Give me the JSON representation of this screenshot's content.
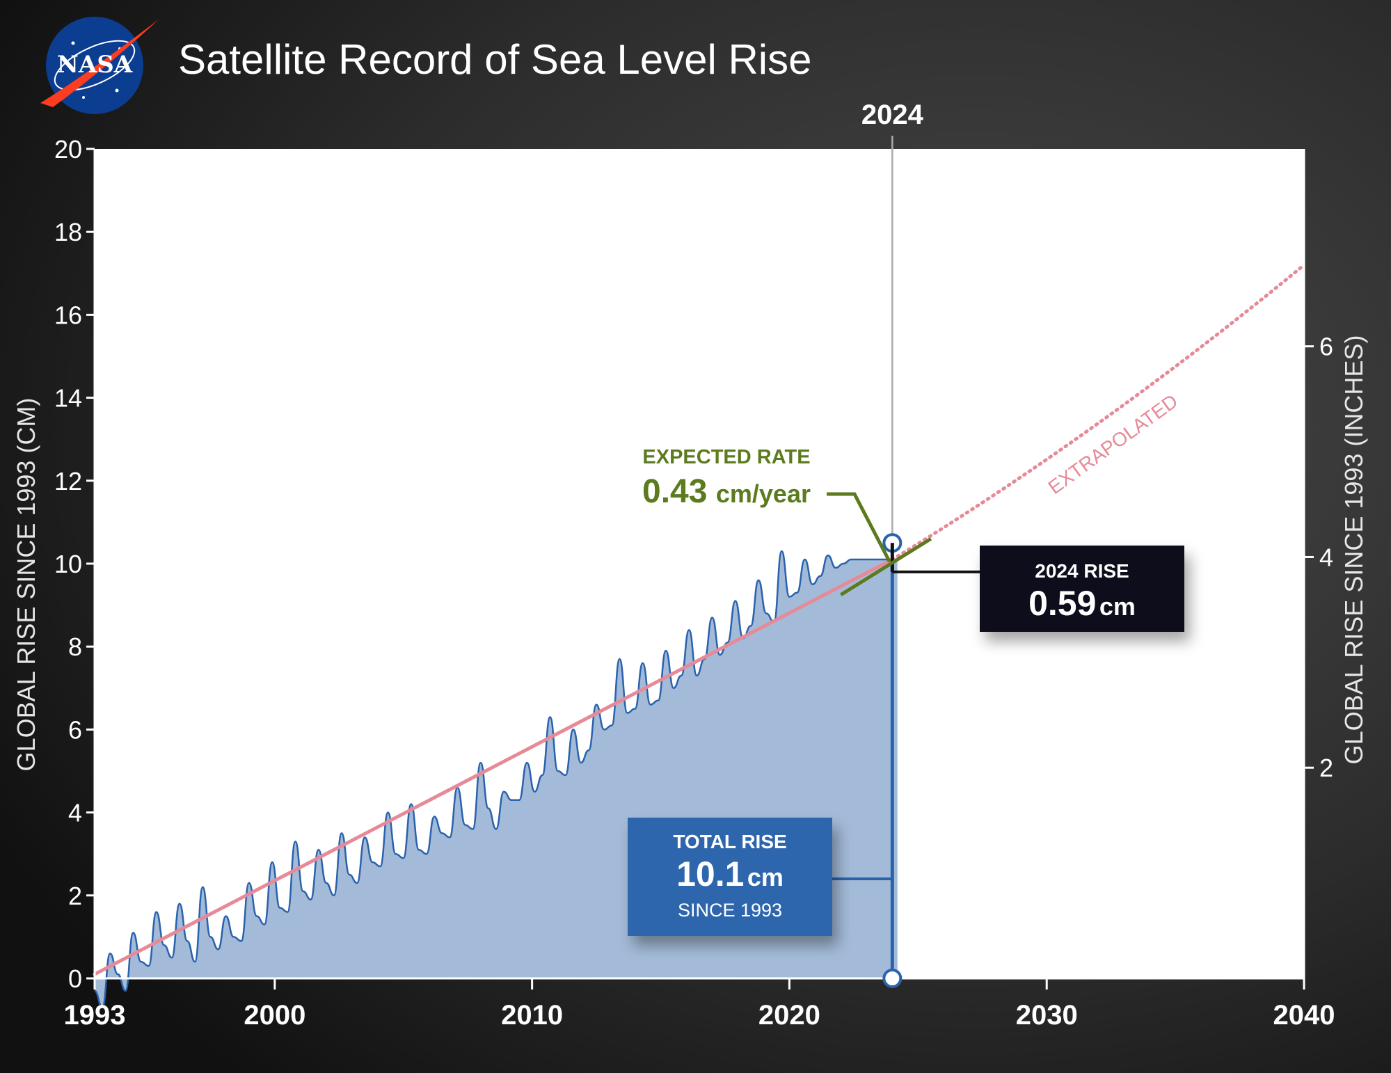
{
  "colors": {
    "background": "#1f1f1f",
    "plot": "#ffffff",
    "series": "#2a62ad",
    "fill": "#a3bbd8",
    "trend": "#e68a98",
    "expected": "#5c7a1e",
    "box_total": "#2e66ae",
    "box_2024": "#0e111a",
    "marker": "#2a62ad"
  },
  "header": {
    "logo_text": "NASA",
    "title": "Satellite Record of Sea Level Rise"
  },
  "chart_data": {
    "type": "area",
    "title": "Satellite Record of Sea Level Rise",
    "ylabel": "GLOBAL RISE SINCE 1993 (CM)",
    "y2label": "GLOBAL RISE SINCE 1993 (INCHES)",
    "xlim": [
      1993,
      2040
    ],
    "ylim": [
      0,
      20
    ],
    "y2lim_inches": [
      0,
      7.874
    ],
    "x_ticks": [
      1993,
      2000,
      2010,
      2020,
      2030,
      2040
    ],
    "y_ticks": [
      0,
      2,
      4,
      6,
      8,
      10,
      12,
      14,
      16,
      18,
      20
    ],
    "y2_ticks": [
      2,
      4,
      6
    ],
    "grid": false,
    "marker_year": 2024,
    "marker_year_label": "2024",
    "series": [
      {
        "name": "",
        "x": [
          1993.0,
          1993.3,
          1993.6,
          1993.9,
          1994.2,
          1994.5,
          1994.8,
          1995.1,
          1995.4,
          1995.7,
          1996.0,
          1996.3,
          1996.6,
          1996.9,
          1997.2,
          1997.5,
          1997.8,
          1998.1,
          1998.4,
          1998.7,
          1999.0,
          1999.3,
          1999.6,
          1999.9,
          2000.2,
          2000.5,
          2000.8,
          2001.1,
          2001.4,
          2001.7,
          2002.0,
          2002.3,
          2002.6,
          2002.9,
          2003.2,
          2003.5,
          2003.8,
          2004.1,
          2004.4,
          2004.7,
          2005.0,
          2005.3,
          2005.6,
          2005.9,
          2006.2,
          2006.5,
          2006.8,
          2007.1,
          2007.4,
          2007.7,
          2008.0,
          2008.3,
          2008.6,
          2008.9,
          2009.2,
          2009.5,
          2009.8,
          2010.1,
          2010.4,
          2010.7,
          2011.0,
          2011.3,
          2011.6,
          2011.9,
          2012.2,
          2012.5,
          2012.8,
          2013.1,
          2013.4,
          2013.7,
          2014.0,
          2014.3,
          2014.6,
          2014.9,
          2015.2,
          2015.5,
          2015.8,
          2016.1,
          2016.4,
          2016.7,
          2017.0,
          2017.3,
          2017.6,
          2017.9,
          2018.2,
          2018.5,
          2018.8,
          2019.1,
          2019.4,
          2019.7,
          2020.0,
          2020.3,
          2020.6,
          2020.9,
          2021.2,
          2021.5,
          2021.8,
          2022.1,
          2022.4,
          2022.7,
          2023.0,
          2023.3,
          2023.6,
          2023.9,
          2024.2
        ],
        "values": [
          -0.3,
          -0.7,
          0.6,
          0.1,
          -0.3,
          1.1,
          0.4,
          0.3,
          1.6,
          0.8,
          0.5,
          1.8,
          0.9,
          0.4,
          2.2,
          1.0,
          0.7,
          1.5,
          1.0,
          0.9,
          2.3,
          1.5,
          1.3,
          2.8,
          1.7,
          1.6,
          3.3,
          2.1,
          1.9,
          3.1,
          2.3,
          2.0,
          3.5,
          2.5,
          2.3,
          3.4,
          2.8,
          2.7,
          4.0,
          3.0,
          2.9,
          4.2,
          3.1,
          3.0,
          3.9,
          3.5,
          3.4,
          4.6,
          3.7,
          3.6,
          5.2,
          4.1,
          3.6,
          4.5,
          4.3,
          4.3,
          5.2,
          4.5,
          4.9,
          6.3,
          5.0,
          4.9,
          6.0,
          5.2,
          5.5,
          6.6,
          6.0,
          6.1,
          7.7,
          6.4,
          6.5,
          7.6,
          6.6,
          6.7,
          7.9,
          7.0,
          7.3,
          8.4,
          7.3,
          7.7,
          8.7,
          7.8,
          8.1,
          9.1,
          8.2,
          8.5,
          9.6,
          8.8,
          8.6,
          10.3,
          9.2,
          9.3,
          10.1,
          9.5,
          9.7,
          10.2,
          9.9,
          10.0,
          10.1,
          10.1,
          10.1,
          10.1,
          10.1,
          10.1,
          10.1
        ]
      }
    ],
    "trend_line": {
      "name": "",
      "x_start": 1993,
      "x_end": 2040,
      "y_at_1993": 0.1,
      "y_at_2024": 10.1,
      "y_at_2040": 17.2
    },
    "extrapolated_label": "EXTRAPOLATED",
    "expected_rate": {
      "label": "EXPECTED RATE",
      "value": "0.43",
      "unit": "cm/year"
    },
    "rise_2024": {
      "label": "2024 RISE",
      "value": "0.59",
      "unit": "cm"
    },
    "total_rise": {
      "label": "TOTAL RISE",
      "value": "10.1",
      "unit": "cm",
      "since": "SINCE 1993"
    }
  }
}
